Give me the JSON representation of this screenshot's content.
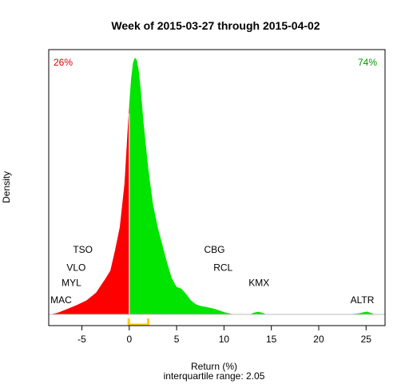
{
  "chart_data": {
    "type": "area",
    "title": "Week of 2015-03-27 through 2015-04-02",
    "xlabel": "Return (%)",
    "ylabel": "Density",
    "subtitle": "interquartile range: 2.05",
    "xlim": [
      -8.5,
      27
    ],
    "ylim": [
      0,
      1
    ],
    "xticks": [
      -5,
      0,
      5,
      10,
      15,
      20,
      25
    ],
    "y_axis_ticks_shown": false,
    "grid": false,
    "negative_color": "#ff0000",
    "positive_color": "#00e400",
    "iqr_color": "#ffcc00",
    "iqr_range": [
      -0.05,
      2.0
    ],
    "negative_share_label": "26%",
    "positive_share_label": "74%",
    "density_curve": {
      "x": [
        -8.3,
        -7.5,
        -6.5,
        -5.5,
        -4.5,
        -3.5,
        -2.5,
        -2.0,
        -1.5,
        -1.0,
        -0.5,
        -0.2,
        0.0,
        0.2,
        0.4,
        0.6,
        0.8,
        1.0,
        1.2,
        1.5,
        2.0,
        2.5,
        3.0,
        3.5,
        4.0,
        4.5,
        5.0,
        5.5,
        6.0,
        6.5,
        7.0,
        7.5,
        8.0,
        9.0,
        10.0,
        11.0,
        12.0,
        12.7,
        13.2,
        13.6,
        14.0,
        14.5,
        15.5,
        17.0,
        19.0,
        21.0,
        23.0,
        24.2,
        24.7,
        25.1,
        25.5,
        25.9,
        26.5
      ],
      "y": [
        0.0,
        0.007,
        0.022,
        0.037,
        0.055,
        0.085,
        0.14,
        0.17,
        0.25,
        0.34,
        0.51,
        0.7,
        0.82,
        0.92,
        0.98,
        1.0,
        0.99,
        0.95,
        0.88,
        0.75,
        0.57,
        0.43,
        0.34,
        0.27,
        0.2,
        0.14,
        0.107,
        0.1,
        0.08,
        0.055,
        0.04,
        0.033,
        0.03,
        0.022,
        0.009,
        0.0,
        0.0,
        0.0,
        0.007,
        0.01,
        0.007,
        0.0,
        0.0,
        0.0,
        0.0,
        0.0,
        0.0,
        0.004,
        0.008,
        0.011,
        0.006,
        0.001,
        0.0
      ]
    },
    "annotations": [
      {
        "text": "TSO",
        "x": -4.9,
        "y": 0.24
      },
      {
        "text": "VLO",
        "x": -5.6,
        "y": 0.17
      },
      {
        "text": "MYL",
        "x": -6.1,
        "y": 0.11
      },
      {
        "text": "MAC",
        "x": -7.2,
        "y": 0.044
      },
      {
        "text": "CBG",
        "x": 9.0,
        "y": 0.24
      },
      {
        "text": "RCL",
        "x": 9.9,
        "y": 0.17
      },
      {
        "text": "KMX",
        "x": 13.7,
        "y": 0.11
      },
      {
        "text": "ALTR",
        "x": 24.6,
        "y": 0.044
      }
    ]
  }
}
